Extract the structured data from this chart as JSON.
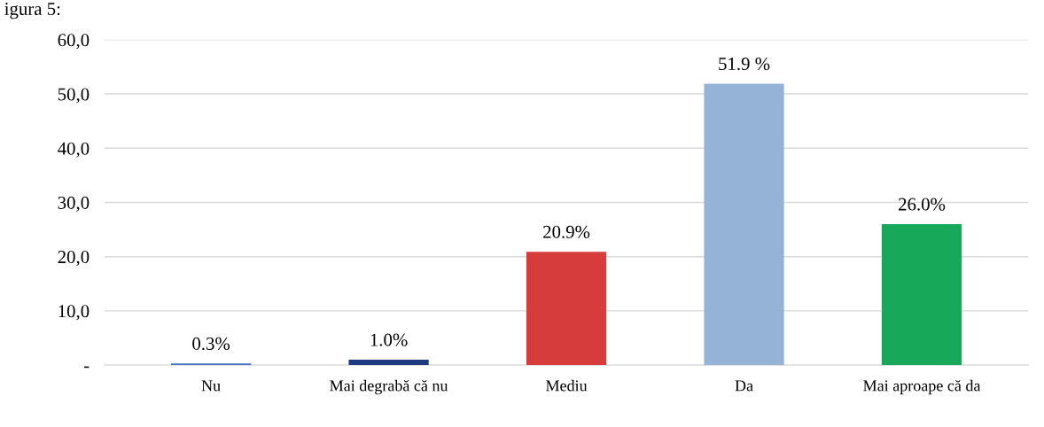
{
  "chart_data": {
    "type": "bar",
    "annotations": [
      "igura 5:"
    ],
    "categories": [
      "Nu",
      "Mai degrabă că nu",
      "Mediu",
      "Da",
      "Mai aproape că da"
    ],
    "values": [
      0.3,
      1.0,
      20.9,
      51.9,
      26.0
    ],
    "colors": [
      "#4472c4",
      "#1f3a80",
      "#d63c3c",
      "#95b3d7",
      "#17a85a"
    ],
    "value_labels": [
      "0.3%",
      "1.0%",
      "20.9%",
      "51.9 %",
      "26.0%"
    ],
    "ylim": [
      0,
      60
    ],
    "yticks": [
      {
        "value": 0,
        "label": "-"
      },
      {
        "value": 10,
        "label": "10,0"
      },
      {
        "value": 20,
        "label": "20,0"
      },
      {
        "value": 30,
        "label": "30,0"
      },
      {
        "value": 40,
        "label": "40,0"
      },
      {
        "value": 50,
        "label": "50,0"
      },
      {
        "value": 60,
        "label": "60,0"
      }
    ],
    "grid": "y"
  }
}
